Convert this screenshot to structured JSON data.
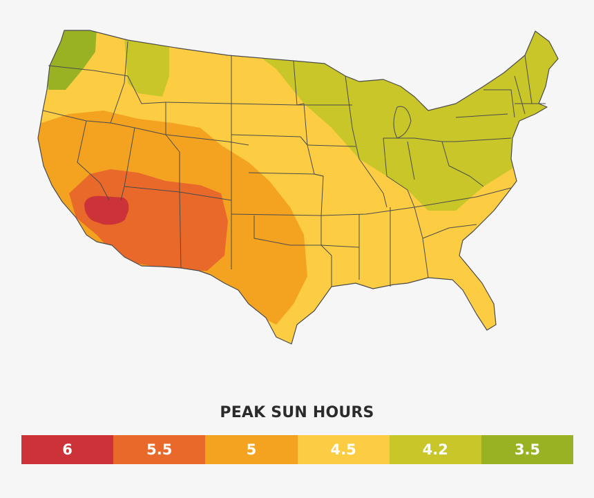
{
  "legend": {
    "title": "PEAK SUN HOURS",
    "items": [
      {
        "label": "6",
        "value": 6,
        "color": "#cc3338"
      },
      {
        "label": "5.5",
        "value": 5.5,
        "color": "#e8692a"
      },
      {
        "label": "5",
        "value": 5,
        "color": "#f4a321"
      },
      {
        "label": "4.5",
        "value": 4.5,
        "color": "#fccd43"
      },
      {
        "label": "4.2",
        "value": 4.2,
        "color": "#c9c62a"
      },
      {
        "label": "3.5",
        "value": 3.5,
        "color": "#99b224"
      }
    ]
  },
  "map": {
    "region": "contiguous United States",
    "state_border_color": "#4a4a4a"
  }
}
